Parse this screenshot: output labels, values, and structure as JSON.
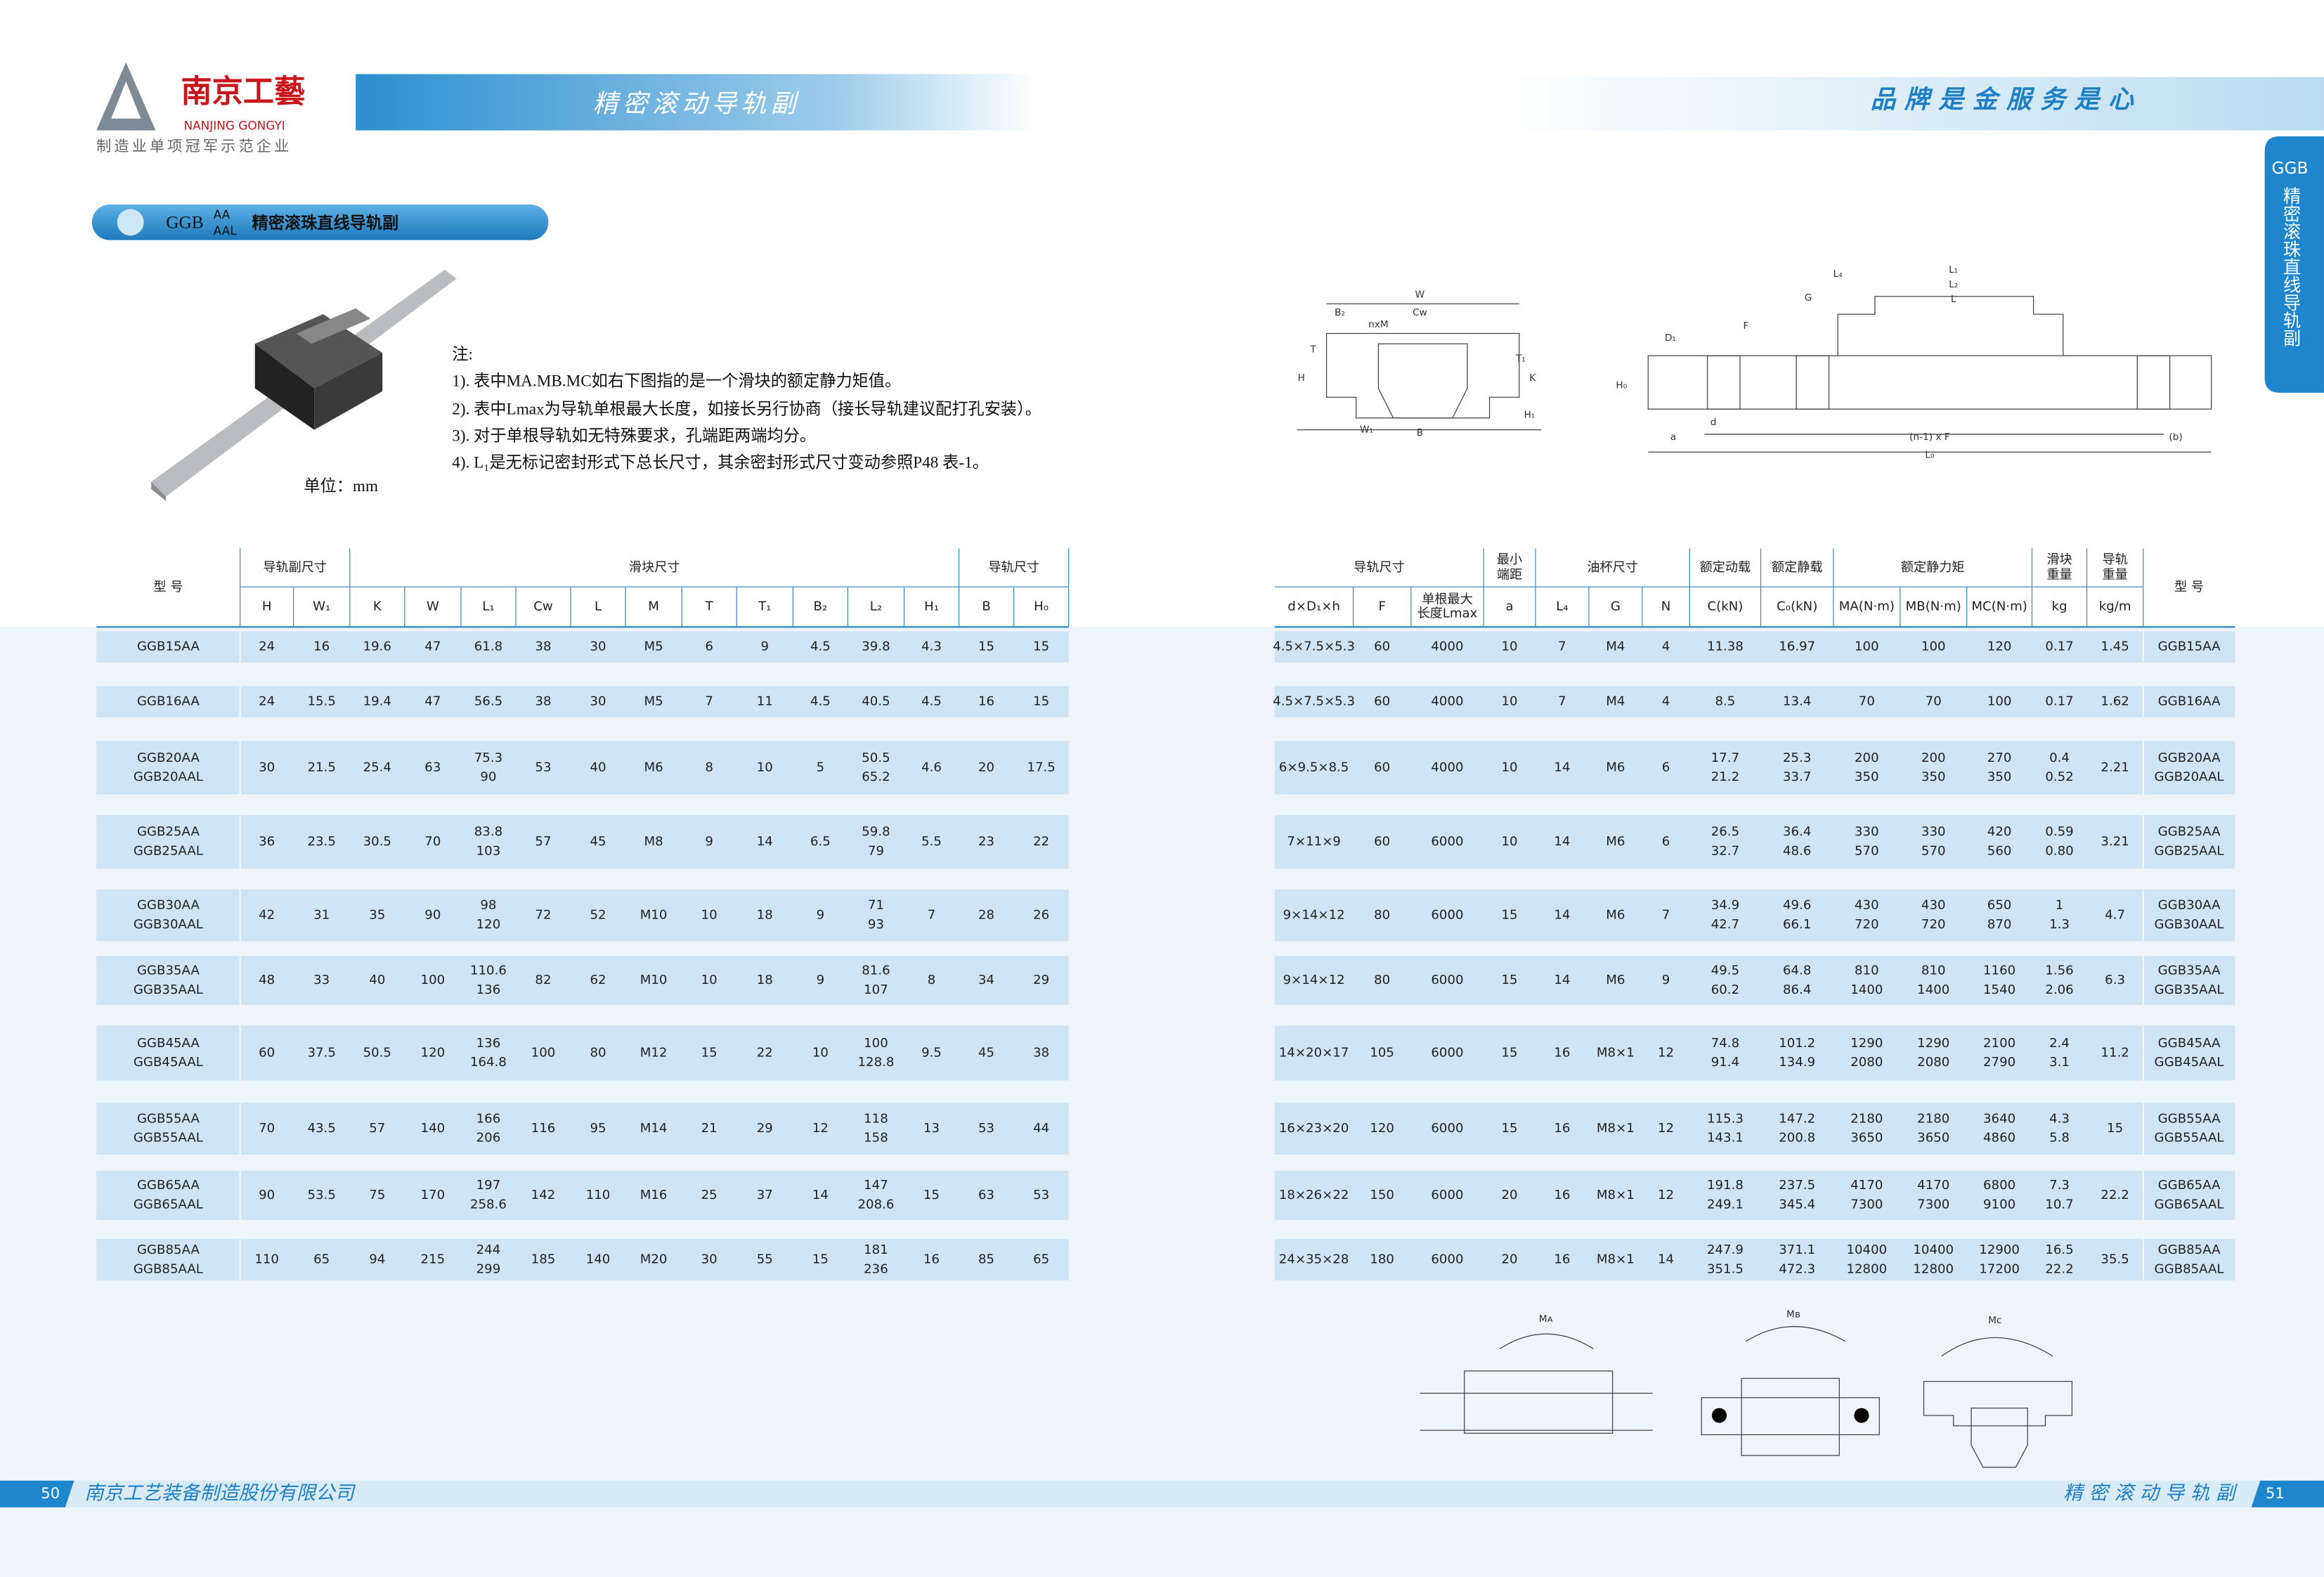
{
  "header": {
    "logo_cn": "南京工藝",
    "logo_en": "NANJING GONGYI",
    "tagline": "制造业单项冠军示范企业",
    "band_title": "精密滚动导轨副",
    "slogan": "品 牌 是 金 服 务 是 心"
  },
  "side_tab": {
    "code": "GGB",
    "text": "精密滚珠直线导轨副"
  },
  "section_title": {
    "prefix": "GGB",
    "suffix_top": "AA",
    "suffix_bottom": "AAL",
    "text": "精密滚珠直线导轨副"
  },
  "notes": {
    "heading": "注:",
    "items": [
      "1). 表中MA.MB.MC如右下图指的是一个滑块的额定静力矩值。",
      "2). 表中Lmax为导轨单根最大长度，如接长另行协商（接长导轨建议配打孔安装）。",
      "3). 对于单根导轨如无特殊要求，孔端距两端均分。",
      "4). L₁是无标记密封形式下总长尺寸，其余密封形式尺寸变动参照P48 表-1。"
    ],
    "unit": "单位：mm"
  },
  "diagrams": {
    "section": [
      "W",
      "B₂",
      "Cᴡ",
      "nxM",
      "T",
      "T₁",
      "H",
      "K",
      "H₁",
      "W₁",
      "B"
    ],
    "rail": [
      "L₄",
      "L₁",
      "L₂",
      "L",
      "G",
      "F",
      "D₁",
      "H₀",
      "d",
      "a",
      "(n-1) x F",
      "(b)",
      "L₀"
    ],
    "moments": [
      "Mᴀ",
      "Mʙ",
      "Mᴄ"
    ]
  },
  "table": {
    "groups": [
      [
        "型 号"
      ],
      [
        "导轨副尺寸"
      ],
      [
        "滑块尺寸"
      ],
      [
        "导轨尺寸"
      ],
      [
        "导轨尺寸"
      ],
      [
        "最小",
        "端距"
      ],
      [
        "油杯尺寸"
      ],
      [
        "额定动载"
      ],
      [
        "额定静载"
      ],
      [
        "额定静力矩"
      ],
      [
        "滑块",
        "重量"
      ],
      [
        "导轨",
        "重量"
      ],
      [
        "型 号"
      ]
    ],
    "columns": [
      [
        "H"
      ],
      [
        "W₁"
      ],
      [
        "K"
      ],
      [
        "W"
      ],
      [
        "L₁"
      ],
      [
        "Cᴡ"
      ],
      [
        "L"
      ],
      [
        "M"
      ],
      [
        "T"
      ],
      [
        "T₁"
      ],
      [
        "B₂"
      ],
      [
        "L₂"
      ],
      [
        "H₁"
      ],
      [
        "B"
      ],
      [
        "H₀"
      ],
      [
        "d×D₁×h"
      ],
      [
        "F"
      ],
      [
        "单根最大",
        "长度Lmax"
      ],
      [
        "a"
      ],
      [
        "L₄"
      ],
      [
        "G"
      ],
      [
        "N"
      ],
      [
        "C(kN)"
      ],
      [
        "C₀(kN)"
      ],
      [
        "MA(N·m)"
      ],
      [
        "MB(N·m)"
      ],
      [
        "MC(N·m)"
      ],
      [
        "kg"
      ],
      [
        "kg/m"
      ]
    ],
    "rows": [
      [
        [
          "GGB15AA"
        ],
        [
          "24"
        ],
        [
          "16"
        ],
        [
          "19.6"
        ],
        [
          "47"
        ],
        [
          "61.8"
        ],
        [
          "38"
        ],
        [
          "30"
        ],
        [
          "M5"
        ],
        [
          "6"
        ],
        [
          "9"
        ],
        [
          "4.5"
        ],
        [
          "39.8"
        ],
        [
          "4.3"
        ],
        [
          "15"
        ],
        [
          "15"
        ],
        [
          "4.5×7.5×5.3"
        ],
        [
          "60"
        ],
        [
          "4000"
        ],
        [
          "10"
        ],
        [
          "7"
        ],
        [
          "M4"
        ],
        [
          "4"
        ],
        [
          "11.38"
        ],
        [
          "16.97"
        ],
        [
          "100"
        ],
        [
          "100"
        ],
        [
          "120"
        ],
        [
          "0.17"
        ],
        [
          "1.45"
        ],
        [
          "GGB15AA"
        ]
      ],
      [
        [
          "GGB16AA"
        ],
        [
          "24"
        ],
        [
          "15.5"
        ],
        [
          "19.4"
        ],
        [
          "47"
        ],
        [
          "56.5"
        ],
        [
          "38"
        ],
        [
          "30"
        ],
        [
          "M5"
        ],
        [
          "7"
        ],
        [
          "11"
        ],
        [
          "4.5"
        ],
        [
          "40.5"
        ],
        [
          "4.5"
        ],
        [
          "16"
        ],
        [
          "15"
        ],
        [
          "4.5×7.5×5.3"
        ],
        [
          "60"
        ],
        [
          "4000"
        ],
        [
          "10"
        ],
        [
          "7"
        ],
        [
          "M4"
        ],
        [
          "4"
        ],
        [
          "8.5"
        ],
        [
          "13.4"
        ],
        [
          "70"
        ],
        [
          "70"
        ],
        [
          "100"
        ],
        [
          "0.17"
        ],
        [
          "1.62"
        ],
        [
          "GGB16AA"
        ]
      ],
      [
        [
          "GGB20AA",
          "GGB20AAL"
        ],
        [
          "30"
        ],
        [
          "21.5"
        ],
        [
          "25.4"
        ],
        [
          "63"
        ],
        [
          "75.3",
          "90"
        ],
        [
          "53"
        ],
        [
          "40"
        ],
        [
          "M6"
        ],
        [
          "8"
        ],
        [
          "10"
        ],
        [
          "5"
        ],
        [
          "50.5",
          "65.2"
        ],
        [
          "4.6"
        ],
        [
          "20"
        ],
        [
          "17.5"
        ],
        [
          "6×9.5×8.5"
        ],
        [
          "60"
        ],
        [
          "4000"
        ],
        [
          "10"
        ],
        [
          "14"
        ],
        [
          "M6"
        ],
        [
          "6"
        ],
        [
          "17.7",
          "21.2"
        ],
        [
          "25.3",
          "33.7"
        ],
        [
          "200",
          "350"
        ],
        [
          "200",
          "350"
        ],
        [
          "270",
          "350"
        ],
        [
          "0.4",
          "0.52"
        ],
        [
          "2.21"
        ],
        [
          "GGB20AA",
          "GGB20AAL"
        ]
      ],
      [
        [
          "GGB25AA",
          "GGB25AAL"
        ],
        [
          "36"
        ],
        [
          "23.5"
        ],
        [
          "30.5"
        ],
        [
          "70"
        ],
        [
          "83.8",
          "103"
        ],
        [
          "57"
        ],
        [
          "45"
        ],
        [
          "M8"
        ],
        [
          "9"
        ],
        [
          "14"
        ],
        [
          "6.5"
        ],
        [
          "59.8",
          "79"
        ],
        [
          "5.5"
        ],
        [
          "23"
        ],
        [
          "22"
        ],
        [
          "7×11×9"
        ],
        [
          "60"
        ],
        [
          "6000"
        ],
        [
          "10"
        ],
        [
          "14"
        ],
        [
          "M6"
        ],
        [
          "6"
        ],
        [
          "26.5",
          "32.7"
        ],
        [
          "36.4",
          "48.6"
        ],
        [
          "330",
          "570"
        ],
        [
          "330",
          "570"
        ],
        [
          "420",
          "560"
        ],
        [
          "0.59",
          "0.80"
        ],
        [
          "3.21"
        ],
        [
          "GGB25AA",
          "GGB25AAL"
        ]
      ],
      [
        [
          "GGB30AA",
          "GGB30AAL"
        ],
        [
          "42"
        ],
        [
          "31"
        ],
        [
          "35"
        ],
        [
          "90"
        ],
        [
          "98",
          "120"
        ],
        [
          "72"
        ],
        [
          "52"
        ],
        [
          "M10"
        ],
        [
          "10"
        ],
        [
          "18"
        ],
        [
          "9"
        ],
        [
          "71",
          "93"
        ],
        [
          "7"
        ],
        [
          "28"
        ],
        [
          "26"
        ],
        [
          "9×14×12"
        ],
        [
          "80"
        ],
        [
          "6000"
        ],
        [
          "15"
        ],
        [
          "14"
        ],
        [
          "M6"
        ],
        [
          "7"
        ],
        [
          "34.9",
          "42.7"
        ],
        [
          "49.6",
          "66.1"
        ],
        [
          "430",
          "720"
        ],
        [
          "430",
          "720"
        ],
        [
          "650",
          "870"
        ],
        [
          "1",
          "1.3"
        ],
        [
          "4.7"
        ],
        [
          "GGB30AA",
          "GGB30AAL"
        ]
      ],
      [
        [
          "GGB35AA",
          "GGB35AAL"
        ],
        [
          "48"
        ],
        [
          "33"
        ],
        [
          "40"
        ],
        [
          "100"
        ],
        [
          "110.6",
          "136"
        ],
        [
          "82"
        ],
        [
          "62"
        ],
        [
          "M10"
        ],
        [
          "10"
        ],
        [
          "18"
        ],
        [
          "9"
        ],
        [
          "81.6",
          "107"
        ],
        [
          "8"
        ],
        [
          "34"
        ],
        [
          "29"
        ],
        [
          "9×14×12"
        ],
        [
          "80"
        ],
        [
          "6000"
        ],
        [
          "15"
        ],
        [
          "14"
        ],
        [
          "M6"
        ],
        [
          "9"
        ],
        [
          "49.5",
          "60.2"
        ],
        [
          "64.8",
          "86.4"
        ],
        [
          "810",
          "1400"
        ],
        [
          "810",
          "1400"
        ],
        [
          "1160",
          "1540"
        ],
        [
          "1.56",
          "2.06"
        ],
        [
          "6.3"
        ],
        [
          "GGB35AA",
          "GGB35AAL"
        ]
      ],
      [
        [
          "GGB45AA",
          "GGB45AAL"
        ],
        [
          "60"
        ],
        [
          "37.5"
        ],
        [
          "50.5"
        ],
        [
          "120"
        ],
        [
          "136",
          "164.8"
        ],
        [
          "100"
        ],
        [
          "80"
        ],
        [
          "M12"
        ],
        [
          "15"
        ],
        [
          "22"
        ],
        [
          "10"
        ],
        [
          "100",
          "128.8"
        ],
        [
          "9.5"
        ],
        [
          "45"
        ],
        [
          "38"
        ],
        [
          "14×20×17"
        ],
        [
          "105"
        ],
        [
          "6000"
        ],
        [
          "15"
        ],
        [
          "16"
        ],
        [
          "M8×1"
        ],
        [
          "12"
        ],
        [
          "74.8",
          "91.4"
        ],
        [
          "101.2",
          "134.9"
        ],
        [
          "1290",
          "2080"
        ],
        [
          "1290",
          "2080"
        ],
        [
          "2100",
          "2790"
        ],
        [
          "2.4",
          "3.1"
        ],
        [
          "11.2"
        ],
        [
          "GGB45AA",
          "GGB45AAL"
        ]
      ],
      [
        [
          "GGB55AA",
          "GGB55AAL"
        ],
        [
          "70"
        ],
        [
          "43.5"
        ],
        [
          "57"
        ],
        [
          "140"
        ],
        [
          "166",
          "206"
        ],
        [
          "116"
        ],
        [
          "95"
        ],
        [
          "M14"
        ],
        [
          "21"
        ],
        [
          "29"
        ],
        [
          "12"
        ],
        [
          "118",
          "158"
        ],
        [
          "13"
        ],
        [
          "53"
        ],
        [
          "44"
        ],
        [
          "16×23×20"
        ],
        [
          "120"
        ],
        [
          "6000"
        ],
        [
          "15"
        ],
        [
          "16"
        ],
        [
          "M8×1"
        ],
        [
          "12"
        ],
        [
          "115.3",
          "143.1"
        ],
        [
          "147.2",
          "200.8"
        ],
        [
          "2180",
          "3650"
        ],
        [
          "2180",
          "3650"
        ],
        [
          "3640",
          "4860"
        ],
        [
          "4.3",
          "5.8"
        ],
        [
          "15"
        ],
        [
          "GGB55AA",
          "GGB55AAL"
        ]
      ],
      [
        [
          "GGB65AA",
          "GGB65AAL"
        ],
        [
          "90"
        ],
        [
          "53.5"
        ],
        [
          "75"
        ],
        [
          "170"
        ],
        [
          "197",
          "258.6"
        ],
        [
          "142"
        ],
        [
          "110"
        ],
        [
          "M16"
        ],
        [
          "25"
        ],
        [
          "37"
        ],
        [
          "14"
        ],
        [
          "147",
          "208.6"
        ],
        [
          "15"
        ],
        [
          "63"
        ],
        [
          "53"
        ],
        [
          "18×26×22"
        ],
        [
          "150"
        ],
        [
          "6000"
        ],
        [
          "20"
        ],
        [
          "16"
        ],
        [
          "M8×1"
        ],
        [
          "12"
        ],
        [
          "191.8",
          "249.1"
        ],
        [
          "237.5",
          "345.4"
        ],
        [
          "4170",
          "7300"
        ],
        [
          "4170",
          "7300"
        ],
        [
          "6800",
          "9100"
        ],
        [
          "7.3",
          "10.7"
        ],
        [
          "22.2"
        ],
        [
          "GGB65AA",
          "GGB65AAL"
        ]
      ],
      [
        [
          "GGB85AA",
          "GGB85AAL"
        ],
        [
          "110"
        ],
        [
          "65"
        ],
        [
          "94"
        ],
        [
          "215"
        ],
        [
          "244",
          "299"
        ],
        [
          "185"
        ],
        [
          "140"
        ],
        [
          "M20"
        ],
        [
          "30"
        ],
        [
          "55"
        ],
        [
          "15"
        ],
        [
          "181",
          "236"
        ],
        [
          "16"
        ],
        [
          "85"
        ],
        [
          "65"
        ],
        [
          "24×35×28"
        ],
        [
          "180"
        ],
        [
          "6000"
        ],
        [
          "20"
        ],
        [
          "16"
        ],
        [
          "M8×1"
        ],
        [
          "14"
        ],
        [
          "247.9",
          "351.5"
        ],
        [
          "371.1",
          "472.3"
        ],
        [
          "10400",
          "12800"
        ],
        [
          "10400",
          "12800"
        ],
        [
          "12900",
          "17200"
        ],
        [
          "16.5",
          "22.2"
        ],
        [
          "35.5"
        ],
        [
          "GGB85AA",
          "GGB85AAL"
        ]
      ]
    ]
  },
  "footer": {
    "left_page": "50",
    "company": "南京工艺装备制造股份有限公司",
    "right_title": "精 密 滚 动 导 轨 副",
    "right_page": "51"
  }
}
